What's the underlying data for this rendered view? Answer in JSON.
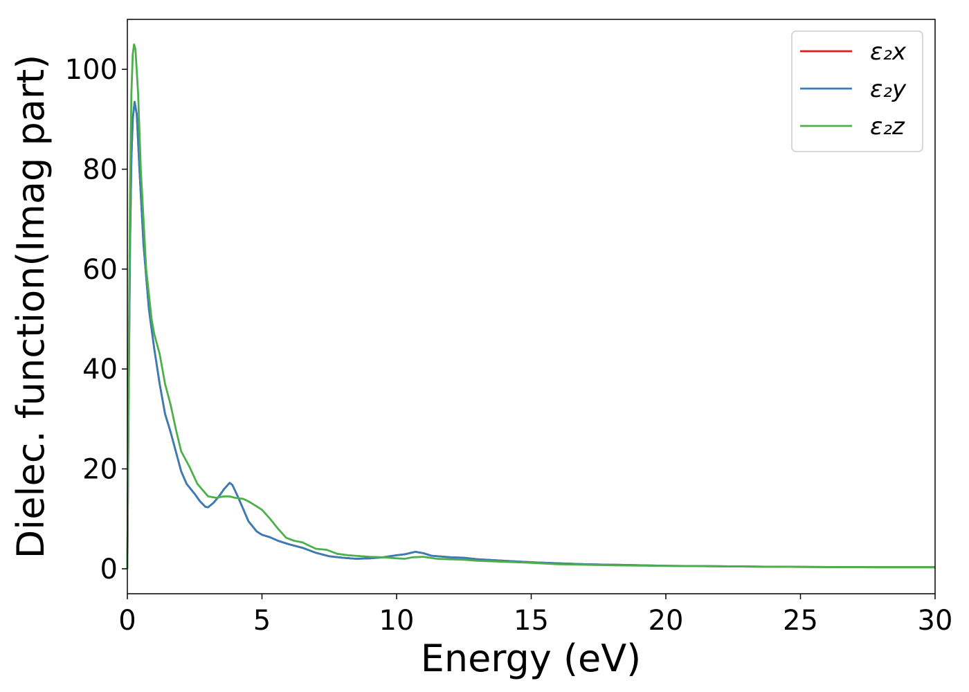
{
  "chart_data": {
    "type": "line",
    "title": "",
    "xlabel": "Energy (eV)",
    "ylabel": "Dielec. function(Imag part)",
    "xlim": [
      0,
      30
    ],
    "ylim": [
      -5,
      110
    ],
    "xticks": [
      0,
      5,
      10,
      15,
      20,
      25,
      30
    ],
    "yticks": [
      0,
      20,
      40,
      60,
      80,
      100
    ],
    "grid": false,
    "legend_position": "top-right",
    "series": [
      {
        "name": "ε₂x",
        "color": "#e41a1c",
        "points": [
          [
            0,
            0
          ],
          [
            0.05,
            35
          ],
          [
            0.1,
            65
          ],
          [
            0.15,
            82
          ],
          [
            0.2,
            90
          ],
          [
            0.27,
            93.5
          ],
          [
            0.35,
            91
          ],
          [
            0.45,
            80
          ],
          [
            0.6,
            65
          ],
          [
            0.8,
            52
          ],
          [
            1.0,
            44
          ],
          [
            1.2,
            37
          ],
          [
            1.4,
            31
          ],
          [
            1.6,
            27.5
          ],
          [
            1.8,
            23.5
          ],
          [
            2.0,
            19.5
          ],
          [
            2.2,
            17
          ],
          [
            2.5,
            15
          ],
          [
            2.7,
            13.5
          ],
          [
            2.9,
            12.4
          ],
          [
            3.0,
            12.3
          ],
          [
            3.2,
            13.2
          ],
          [
            3.4,
            14.5
          ],
          [
            3.6,
            16
          ],
          [
            3.8,
            17.2
          ],
          [
            3.9,
            16.8
          ],
          [
            4.1,
            14.5
          ],
          [
            4.3,
            12
          ],
          [
            4.5,
            9.5
          ],
          [
            4.8,
            7.5
          ],
          [
            5.0,
            6.8
          ],
          [
            5.3,
            6.3
          ],
          [
            5.6,
            5.6
          ],
          [
            6.0,
            4.9
          ],
          [
            6.5,
            4.2
          ],
          [
            7.0,
            3.2
          ],
          [
            7.5,
            2.5
          ],
          [
            8.0,
            2.2
          ],
          [
            8.5,
            2.0
          ],
          [
            9.0,
            2.1
          ],
          [
            9.5,
            2.3
          ],
          [
            10.0,
            2.7
          ],
          [
            10.3,
            2.9
          ],
          [
            10.7,
            3.4
          ],
          [
            11.0,
            3.1
          ],
          [
            11.3,
            2.6
          ],
          [
            12.0,
            2.3
          ],
          [
            12.5,
            2.2
          ],
          [
            13.0,
            1.9
          ],
          [
            14.0,
            1.6
          ],
          [
            15.0,
            1.3
          ],
          [
            16.0,
            1.1
          ],
          [
            17.0,
            0.9
          ],
          [
            18.0,
            0.8
          ],
          [
            20.0,
            0.6
          ],
          [
            22.0,
            0.5
          ],
          [
            24.0,
            0.4
          ],
          [
            26.0,
            0.35
          ],
          [
            28.0,
            0.3
          ],
          [
            30.0,
            0.3
          ]
        ]
      },
      {
        "name": "ε₂y",
        "color": "#377eb8",
        "points": [
          [
            0,
            0
          ],
          [
            0.05,
            35
          ],
          [
            0.1,
            65
          ],
          [
            0.15,
            82
          ],
          [
            0.2,
            90
          ],
          [
            0.27,
            93.5
          ],
          [
            0.35,
            91
          ],
          [
            0.45,
            80
          ],
          [
            0.6,
            65
          ],
          [
            0.8,
            52
          ],
          [
            1.0,
            44
          ],
          [
            1.2,
            37
          ],
          [
            1.4,
            31
          ],
          [
            1.6,
            27.5
          ],
          [
            1.8,
            23.5
          ],
          [
            2.0,
            19.5
          ],
          [
            2.2,
            17
          ],
          [
            2.5,
            15
          ],
          [
            2.7,
            13.5
          ],
          [
            2.9,
            12.4
          ],
          [
            3.0,
            12.3
          ],
          [
            3.2,
            13.2
          ],
          [
            3.4,
            14.5
          ],
          [
            3.6,
            16
          ],
          [
            3.8,
            17.2
          ],
          [
            3.9,
            16.8
          ],
          [
            4.1,
            14.5
          ],
          [
            4.3,
            12
          ],
          [
            4.5,
            9.5
          ],
          [
            4.8,
            7.5
          ],
          [
            5.0,
            6.8
          ],
          [
            5.3,
            6.3
          ],
          [
            5.6,
            5.6
          ],
          [
            6.0,
            4.9
          ],
          [
            6.5,
            4.2
          ],
          [
            7.0,
            3.2
          ],
          [
            7.5,
            2.5
          ],
          [
            8.0,
            2.2
          ],
          [
            8.5,
            2.0
          ],
          [
            9.0,
            2.1
          ],
          [
            9.5,
            2.3
          ],
          [
            10.0,
            2.7
          ],
          [
            10.3,
            2.9
          ],
          [
            10.7,
            3.4
          ],
          [
            11.0,
            3.1
          ],
          [
            11.3,
            2.6
          ],
          [
            12.0,
            2.3
          ],
          [
            12.5,
            2.2
          ],
          [
            13.0,
            1.9
          ],
          [
            14.0,
            1.6
          ],
          [
            15.0,
            1.3
          ],
          [
            16.0,
            1.1
          ],
          [
            17.0,
            0.9
          ],
          [
            18.0,
            0.8
          ],
          [
            20.0,
            0.6
          ],
          [
            22.0,
            0.5
          ],
          [
            24.0,
            0.4
          ],
          [
            26.0,
            0.35
          ],
          [
            28.0,
            0.3
          ],
          [
            30.0,
            0.3
          ]
        ]
      },
      {
        "name": "ε₂z",
        "color": "#4daf4a",
        "points": [
          [
            0,
            0
          ],
          [
            0.05,
            40
          ],
          [
            0.1,
            75
          ],
          [
            0.15,
            95
          ],
          [
            0.2,
            103
          ],
          [
            0.25,
            105
          ],
          [
            0.3,
            104
          ],
          [
            0.4,
            95
          ],
          [
            0.5,
            80
          ],
          [
            0.7,
            60
          ],
          [
            0.9,
            50
          ],
          [
            1.0,
            47
          ],
          [
            1.2,
            43
          ],
          [
            1.4,
            37
          ],
          [
            1.6,
            33
          ],
          [
            1.8,
            28
          ],
          [
            2.0,
            23.5
          ],
          [
            2.3,
            20.5
          ],
          [
            2.6,
            17
          ],
          [
            3.0,
            14.5
          ],
          [
            3.3,
            14.2
          ],
          [
            3.6,
            14.5
          ],
          [
            3.8,
            14.5
          ],
          [
            4.0,
            14.2
          ],
          [
            4.3,
            14.0
          ],
          [
            4.5,
            13.5
          ],
          [
            4.8,
            12.5
          ],
          [
            5.0,
            11.8
          ],
          [
            5.3,
            10
          ],
          [
            5.6,
            8
          ],
          [
            5.9,
            6.2
          ],
          [
            6.2,
            5.6
          ],
          [
            6.5,
            5.3
          ],
          [
            6.8,
            4.5
          ],
          [
            7.0,
            4.0
          ],
          [
            7.4,
            3.8
          ],
          [
            7.8,
            3.0
          ],
          [
            8.2,
            2.7
          ],
          [
            9.0,
            2.4
          ],
          [
            9.5,
            2.3
          ],
          [
            10.0,
            2.1
          ],
          [
            10.3,
            2.0
          ],
          [
            10.6,
            2.3
          ],
          [
            11.0,
            2.4
          ],
          [
            11.5,
            2.0
          ],
          [
            12.0,
            1.9
          ],
          [
            12.5,
            1.8
          ],
          [
            13.0,
            1.6
          ],
          [
            14.0,
            1.4
          ],
          [
            15.0,
            1.2
          ],
          [
            16.0,
            0.9
          ],
          [
            17.0,
            0.8
          ],
          [
            18.0,
            0.7
          ],
          [
            20.0,
            0.55
          ],
          [
            22.0,
            0.5
          ],
          [
            24.0,
            0.4
          ],
          [
            26.0,
            0.35
          ],
          [
            28.0,
            0.3
          ],
          [
            30.0,
            0.3
          ]
        ]
      }
    ]
  }
}
